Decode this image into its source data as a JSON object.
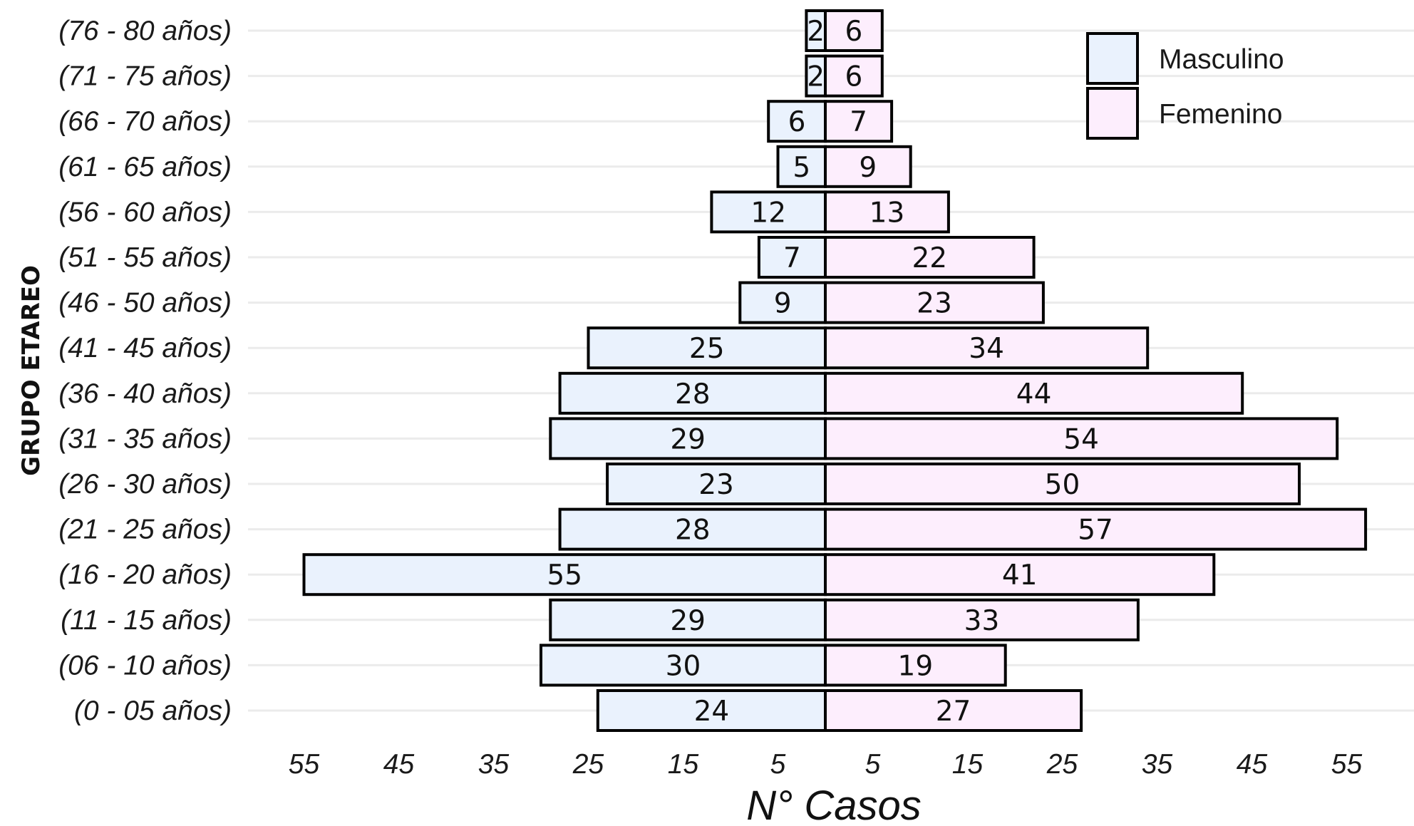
{
  "chart_data": {
    "type": "bar",
    "orientation": "horizontal-population-pyramid",
    "title": "",
    "xlabel": "N° Casos",
    "ylabel": "GRUPO ETAREO",
    "categories": [
      "(0 - 05 años)",
      "(06 - 10 años)",
      "(11 - 15 años)",
      "(16 - 20 años)",
      "(21 - 25 años)",
      "(26 - 30 años)",
      "(31 - 35 años)",
      "(36 - 40 años)",
      "(41 - 45 años)",
      "(46 - 50 años)",
      "(51 - 55 años)",
      "(56 - 60 años)",
      "(61 - 65 años)",
      "(66 - 70 años)",
      "(71 - 75 años)",
      "(76 - 80 años)"
    ],
    "series": [
      {
        "name": "Masculino",
        "side": "left",
        "color": "#eaf2fd",
        "values": [
          24,
          30,
          29,
          55,
          28,
          23,
          29,
          28,
          25,
          9,
          7,
          12,
          5,
          6,
          2,
          2
        ]
      },
      {
        "name": "Femenino",
        "side": "right",
        "color": "#fdeefd",
        "values": [
          27,
          19,
          33,
          41,
          57,
          50,
          54,
          44,
          34,
          23,
          22,
          13,
          9,
          7,
          6,
          6
        ]
      }
    ],
    "x_ticks_left": [
      "55",
      "45",
      "35",
      "25",
      "15",
      "5"
    ],
    "x_ticks_right": [
      "5",
      "15",
      "25",
      "35",
      "45",
      "55"
    ],
    "xlim": [
      -60.5,
      60.5
    ],
    "bar_outline_color": "#000000",
    "grid": "horizontal-major-only",
    "legend_position": "top-right"
  }
}
